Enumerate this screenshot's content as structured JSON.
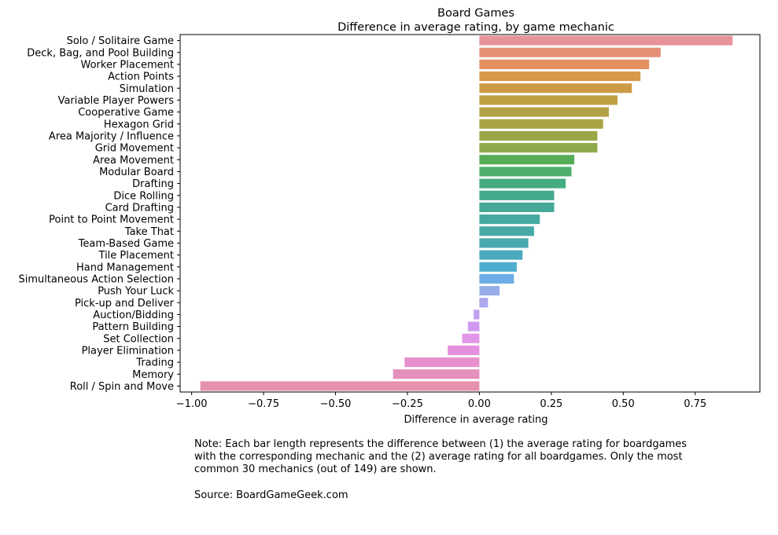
{
  "chart_data": {
    "type": "bar",
    "orientation": "horizontal",
    "title": "Board Games",
    "subtitle": "Difference in average rating, by game mechanic",
    "xlabel": "Difference in average rating",
    "ylabel": "",
    "xlim": [
      -1.04,
      0.975
    ],
    "xticks": [
      -1.0,
      -0.75,
      -0.5,
      -0.25,
      0.0,
      0.25,
      0.5,
      0.75
    ],
    "xtick_labels": [
      "−1.00",
      "−0.75",
      "−0.50",
      "−0.25",
      "0.00",
      "0.25",
      "0.50",
      "0.75"
    ],
    "grid": false,
    "legend": "none",
    "categories": [
      "Solo / Solitaire Game",
      "Deck, Bag, and Pool Building",
      "Worker Placement",
      "Action Points",
      "Simulation",
      "Variable Player Powers",
      "Cooperative Game",
      "Hexagon Grid",
      "Area Majority / Influence",
      "Grid Movement",
      "Area Movement",
      "Modular Board",
      "Drafting",
      "Dice Rolling",
      "Card Drafting",
      "Point to Point Movement",
      "Take That",
      "Team-Based Game",
      "Tile Placement",
      "Hand Management",
      "Simultaneous Action Selection",
      "Push Your Luck",
      "Pick-up and Deliver",
      "Auction/Bidding",
      "Pattern Building",
      "Set Collection",
      "Player Elimination",
      "Trading",
      "Memory",
      "Roll / Spin and Move"
    ],
    "values": [
      0.88,
      0.63,
      0.59,
      0.56,
      0.53,
      0.48,
      0.45,
      0.43,
      0.41,
      0.41,
      0.33,
      0.32,
      0.3,
      0.26,
      0.26,
      0.21,
      0.19,
      0.17,
      0.15,
      0.13,
      0.12,
      0.07,
      0.03,
      -0.02,
      -0.04,
      -0.06,
      -0.11,
      -0.26,
      -0.3,
      -0.97
    ],
    "colors": [
      "#e8939a",
      "#e58f76",
      "#e3915e",
      "#d8994b",
      "#cc9b46",
      "#bf9f42",
      "#b2a245",
      "#a8a444",
      "#9aa747",
      "#8ea94a",
      "#56ad57",
      "#4daf6b",
      "#45ac80",
      "#43aa8e",
      "#44a996",
      "#46a9a0",
      "#47a9a6",
      "#49a8ae",
      "#4aaabc",
      "#4fadcf",
      "#6dade5",
      "#98aee9",
      "#aca8ee",
      "#bfa1f0",
      "#d19af0",
      "#e296e9",
      "#e590de",
      "#e690cd",
      "#e690bc",
      "#e792ac"
    ]
  },
  "footnote": {
    "note": "Note: Each bar length represents the difference between (1) the average rating for boardgames\nwith the corresponding mechanic and the (2) average rating for all boardgames. Only the most\ncommon 30 mechanics (out of 149) are shown.",
    "source": "Source: BoardGameGeek.com"
  }
}
